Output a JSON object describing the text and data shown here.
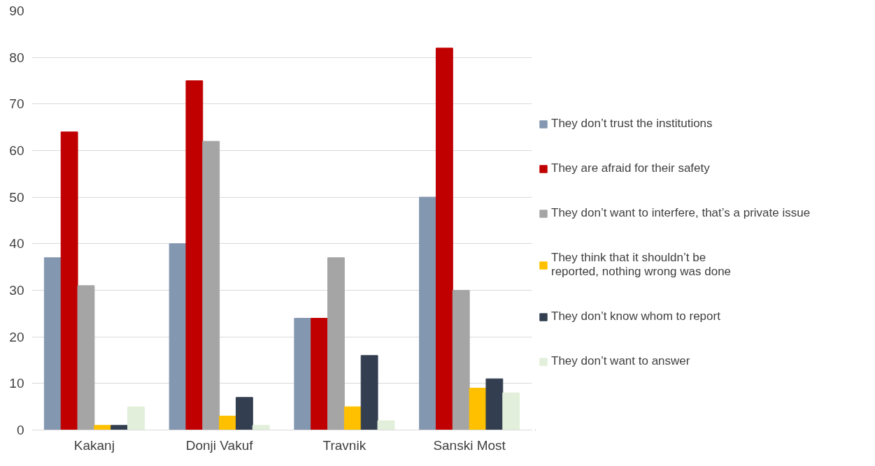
{
  "chart_data": {
    "type": "bar",
    "categories": [
      "Kakanj",
      "Donji Vakuf",
      "Travnik",
      "Sanski Most"
    ],
    "series": [
      {
        "name": "They don’t trust the institutions",
        "color": "#8497b0",
        "values": [
          37,
          40,
          24,
          50
        ]
      },
      {
        "name": "They are afraid for their safety",
        "color": "#c00000",
        "values": [
          64,
          75,
          24,
          82
        ]
      },
      {
        "name": "They don’t want to interfere, that’s a private issue",
        "color": "#a5a5a5",
        "values": [
          31,
          62,
          37,
          30
        ]
      },
      {
        "name": "They think that it shouldn’t be reported, nothing wrong was done",
        "color": "#ffc000",
        "values": [
          1,
          3,
          5,
          9
        ]
      },
      {
        "name": "They don’t know whom to report",
        "color": "#333f50",
        "values": [
          1,
          7,
          16,
          11
        ]
      },
      {
        "name": "They don’t want to answer",
        "color": "#e2efda",
        "values": [
          5,
          1,
          2,
          8
        ]
      }
    ],
    "ylim": [
      0,
      90
    ],
    "yticks": [
      0,
      10,
      20,
      30,
      40,
      50,
      60,
      70,
      80,
      90
    ],
    "grid": "y",
    "legend": "right"
  }
}
